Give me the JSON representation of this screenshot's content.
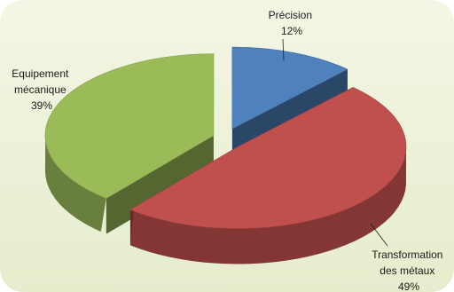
{
  "chart_data": {
    "type": "pie",
    "title": "",
    "categories": [
      "Précision",
      "Transformation des métaux",
      "Equipement mécanique"
    ],
    "values": [
      12,
      49,
      39
    ],
    "value_labels": [
      "12%",
      "49%",
      "39%"
    ],
    "label_lines": [
      [
        "Précision"
      ],
      [
        "Transformation",
        "des métaux"
      ],
      [
        "Equipement",
        "mécanique"
      ]
    ],
    "colors": [
      "#4f81bd",
      "#c0504d",
      "#9bbb59"
    ],
    "style": "3d-exploded",
    "background": "#eef3dd"
  }
}
